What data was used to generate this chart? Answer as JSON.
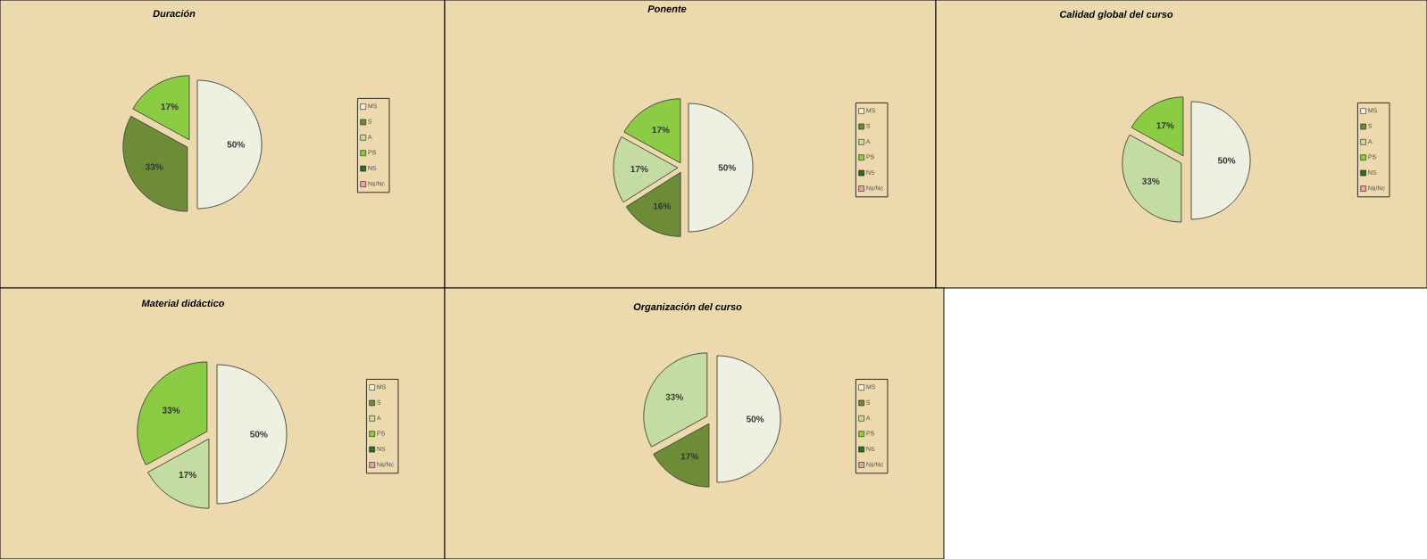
{
  "chart_data": [
    {
      "type": "pie",
      "title": "Duración",
      "categories": [
        "MS",
        "S",
        "A",
        "PS",
        "NS",
        "Ns/Nc"
      ],
      "values": [
        50,
        33,
        0,
        17,
        0,
        0
      ],
      "value_labels": [
        "50%",
        "33%",
        null,
        "17%",
        null,
        null
      ],
      "colors": [
        "#eef0e2",
        "#6e8c38",
        "#c4dca4",
        "#8ccc44",
        "#2f6b2f",
        "#e8a4a4"
      ],
      "legend": "right"
    },
    {
      "type": "pie",
      "title": "Ponente",
      "categories": [
        "MS",
        "S",
        "A",
        "PS",
        "NS",
        "Ns/Nc"
      ],
      "values": [
        50,
        16,
        17,
        17,
        0,
        0
      ],
      "value_labels": [
        "50%",
        "16%",
        "17%",
        "17%",
        null,
        null
      ],
      "colors": [
        "#eef0e2",
        "#6e8c38",
        "#c4dca4",
        "#8ccc44",
        "#2f6b2f",
        "#e8a4a4"
      ],
      "legend": "right"
    },
    {
      "type": "pie",
      "title": "Calidad global del curso",
      "categories": [
        "MS",
        "S",
        "A",
        "PS",
        "NS",
        "Ns/Nc"
      ],
      "values": [
        50,
        0,
        33,
        17,
        0,
        0
      ],
      "value_labels": [
        "50%",
        null,
        "33%",
        "17%",
        null,
        null
      ],
      "colors": [
        "#eef0e2",
        "#6e8c38",
        "#c4dca4",
        "#8ccc44",
        "#2f6b2f",
        "#e8a4a4"
      ],
      "legend": "right"
    },
    {
      "type": "pie",
      "title": "Material didáctico",
      "categories": [
        "MS",
        "S",
        "A",
        "PS",
        "NS",
        "Ns/Nc"
      ],
      "values": [
        50,
        0,
        17,
        33,
        0,
        0
      ],
      "value_labels": [
        "50%",
        null,
        "17%",
        "33%",
        null,
        null
      ],
      "colors": [
        "#eef0e2",
        "#6e8c38",
        "#c4dca4",
        "#8ccc44",
        "#2f6b2f",
        "#e8a4a4"
      ],
      "legend": "right"
    },
    {
      "type": "pie",
      "title": "Organización del curso",
      "categories": [
        "MS",
        "S",
        "A",
        "PS",
        "NS",
        "Ns/Nc"
      ],
      "values": [
        50,
        17,
        33,
        0,
        0,
        0
      ],
      "value_labels": [
        "50%",
        "17%",
        "33%",
        null,
        null,
        null
      ],
      "colors": [
        "#eef0e2",
        "#6e8c38",
        "#c4dca4",
        "#8ccc44",
        "#2f6b2f",
        "#e8a4a4"
      ],
      "legend": "right"
    }
  ]
}
